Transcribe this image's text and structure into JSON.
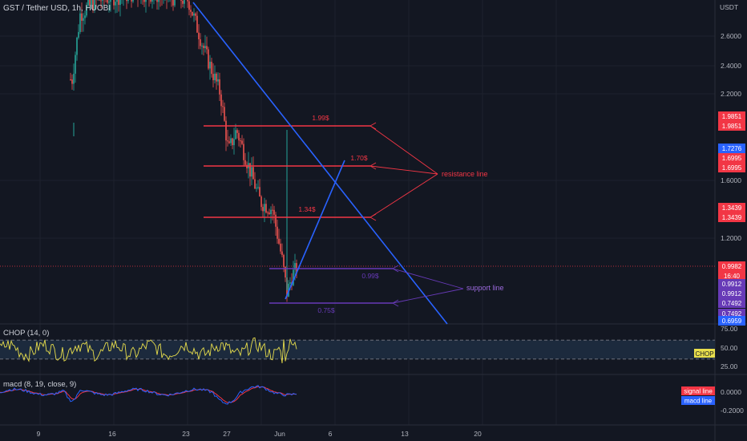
{
  "header": {
    "title": "GST / Tether USD, 1h, HUOBI",
    "currency": "USDT"
  },
  "panes": {
    "chop_label": "CHOP (14, 0)",
    "macd_label": "macd (8, 19, close, 9)"
  },
  "colors": {
    "bg": "#131722",
    "up": "#26a69a",
    "down": "#ef5350",
    "blue": "#2962ff",
    "red": "#f23645",
    "purple": "#673ab7",
    "chop": "#e8de4c",
    "macd": "#2962ff",
    "signal": "#f23645"
  },
  "chart_data": [
    {
      "type": "candlestick",
      "title": "GST / Tether USD, 1h, HUOBI",
      "y_axis_ticks": [
        "2.6000",
        "2.4000",
        "2.2000",
        "1.6000",
        "1.2000"
      ],
      "x_axis_ticks": [
        "9",
        "16",
        "23",
        "27",
        "Jun",
        "6",
        "13",
        "20"
      ],
      "price_envelope": {
        "x": [
          "9",
          "16",
          "23",
          "27",
          "Jun"
        ],
        "high": [
          2.3,
          2.85,
          2.9,
          2.0,
          1.0
        ],
        "low": [
          1.8,
          2.55,
          2.7,
          1.45,
          0.75
        ],
        "close": [
          2.4,
          2.72,
          2.8,
          1.7,
          0.99
        ]
      },
      "horizontal_levels": [
        {
          "label": "1.99$",
          "price": 1.9851,
          "kind": "resistance"
        },
        {
          "label": "1.70$",
          "price": 1.6995,
          "kind": "resistance"
        },
        {
          "label": "1.34$",
          "price": 1.3439,
          "kind": "resistance"
        },
        {
          "label": "0.99$",
          "price": 0.9912,
          "kind": "support"
        },
        {
          "label": "0.75$",
          "price": 0.7492,
          "kind": "support"
        }
      ],
      "annotations": [
        "resistance line",
        "support line"
      ],
      "price_tags": [
        {
          "text": "1.9851",
          "color": "#f23645"
        },
        {
          "text": "1.9851",
          "color": "#f23645"
        },
        {
          "text": "1.7276",
          "color": "#2962ff"
        },
        {
          "text": "1.6995",
          "color": "#f23645"
        },
        {
          "text": "1.6995",
          "color": "#f23645"
        },
        {
          "text": "1.3439",
          "color": "#f23645"
        },
        {
          "text": "1.3439",
          "color": "#f23645"
        },
        {
          "text": "0.9982",
          "color": "#f23645"
        },
        {
          "text": "16:40",
          "color": "#f23645"
        },
        {
          "text": "0.9912",
          "color": "#673ab7"
        },
        {
          "text": "0.9912",
          "color": "#673ab7"
        },
        {
          "text": "0.7492",
          "color": "#673ab7"
        },
        {
          "text": "0.7492",
          "color": "#673ab7"
        },
        {
          "text": "0.6959",
          "color": "#2962ff"
        }
      ]
    },
    {
      "type": "line",
      "title": "CHOP (14, 0)",
      "y_axis_ticks": [
        "75.00",
        "50.00",
        "25.00"
      ],
      "bands": [
        61.8,
        38.2
      ],
      "last_value_tag": "CHOP"
    },
    {
      "type": "line",
      "title": "macd (8, 19, close, 9)",
      "y_axis_ticks": [
        "0.0000",
        "-0.2000"
      ],
      "series": [
        {
          "name": "signal line"
        },
        {
          "name": "macd line"
        }
      ]
    }
  ]
}
